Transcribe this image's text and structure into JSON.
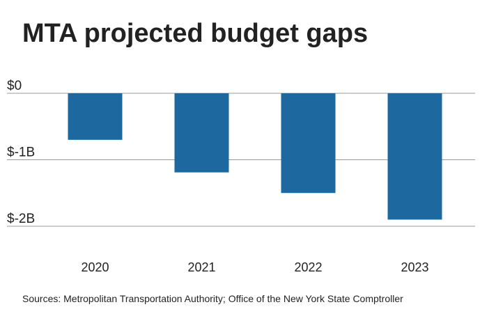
{
  "chart_data": {
    "type": "bar",
    "title": "MTA projected budget gaps",
    "categories": [
      "2020",
      "2021",
      "2022",
      "2023"
    ],
    "values": [
      -700000000,
      -1190000000,
      -1500000000,
      -1900000000
    ],
    "color": "#1d689f",
    "ylim": [
      -2000000000,
      0
    ],
    "yticks": [
      {
        "value": 0,
        "label": "$0"
      },
      {
        "value": -1000000000,
        "label": "$-1B"
      },
      {
        "value": -2000000000,
        "label": "$-2B"
      }
    ],
    "grid": true,
    "source": "Sources: Metropolitan Transportation Authority; Office of the New York State Comptroller"
  }
}
